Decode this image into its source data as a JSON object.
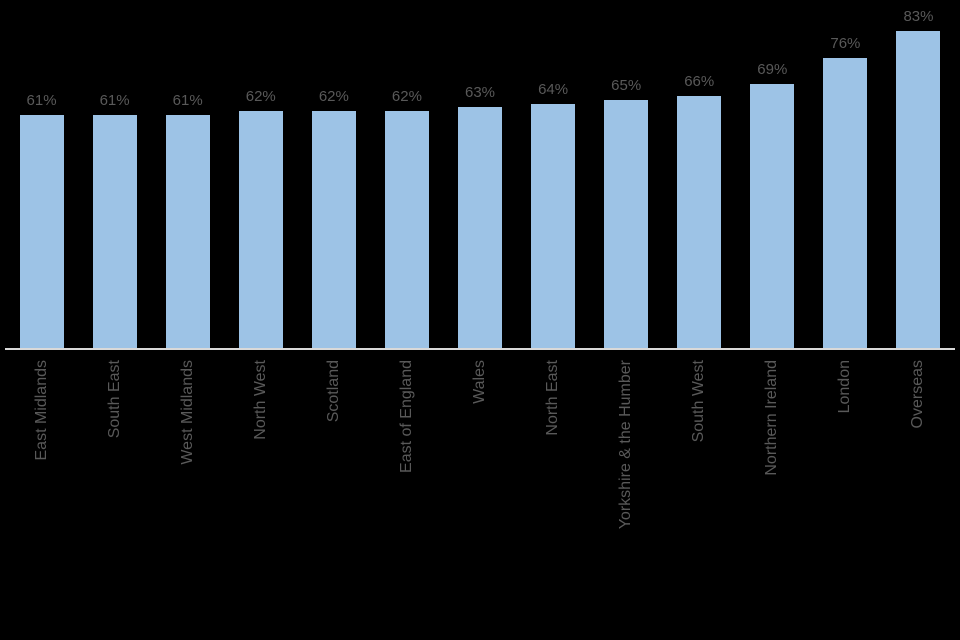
{
  "chart_data": {
    "type": "bar",
    "title": "",
    "xlabel": "",
    "ylabel": "",
    "ylim": [
      0,
      91
    ],
    "grid": false,
    "legend": false,
    "categories": [
      "East Midlands",
      "South East",
      "West Midlands",
      "North West",
      "Scotland",
      "East of England",
      "Wales",
      "North East",
      "Yorkshire & the Humber",
      "South West",
      "Northern Ireland",
      "London",
      "Overseas"
    ],
    "values": [
      61,
      61,
      61,
      62,
      62,
      62,
      63,
      64,
      65,
      66,
      69,
      76,
      83
    ],
    "value_labels": [
      "61%",
      "61%",
      "61%",
      "62%",
      "62%",
      "62%",
      "63%",
      "64%",
      "65%",
      "66%",
      "69%",
      "76%",
      "83%"
    ],
    "bar_color": "#9DC3E6",
    "label_color": "#595959",
    "axis_color": "#d9d9d9",
    "background": "#000000"
  }
}
